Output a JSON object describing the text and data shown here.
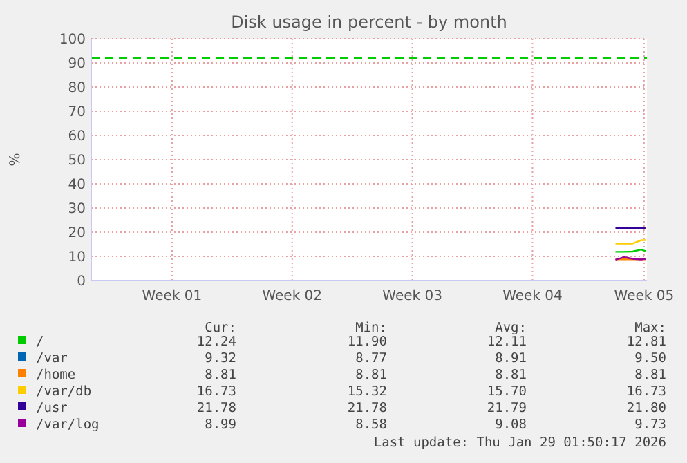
{
  "chart_data": {
    "type": "line",
    "title": "Disk usage in percent - by month",
    "ylabel": "%",
    "x": [
      "2026-01-27T08:00",
      "2026-01-27T20:00",
      "2026-01-28T08:00",
      "2026-01-28T20:00",
      "2026-01-29T02:00"
    ],
    "xlim": [
      "2025-12-27T19:00",
      "2026-01-29T04:00"
    ],
    "xticks": [
      {
        "value": "2026-01-01T12:00",
        "label": "Week 01"
      },
      {
        "value": "2026-01-08T12:00",
        "label": "Week 02"
      },
      {
        "value": "2026-01-15T12:00",
        "label": "Week 03"
      },
      {
        "value": "2026-01-22T12:00",
        "label": "Week 04"
      },
      {
        "value": "2026-01-29T00:00",
        "label": "Week 05"
      }
    ],
    "ylim": [
      0,
      100
    ],
    "yticks": [
      0,
      10,
      20,
      30,
      40,
      50,
      60,
      70,
      80,
      90,
      100
    ],
    "grid": true,
    "legend": "bottom",
    "series": [
      {
        "name": "/",
        "color": "#00cc00",
        "values": [
          11.9,
          11.9,
          12.0,
          12.8,
          12.2
        ]
      },
      {
        "name": "/var",
        "color": "#0066b3",
        "values": [
          null,
          null,
          null,
          null,
          null
        ]
      },
      {
        "name": "/home",
        "color": "#ff8000",
        "values": [
          8.8,
          8.8,
          8.8,
          8.8,
          8.8
        ]
      },
      {
        "name": "/var/db",
        "color": "#ffcc00",
        "values": [
          15.3,
          15.3,
          15.3,
          16.7,
          16.7
        ]
      },
      {
        "name": "/usr",
        "color": "#330099",
        "values": [
          21.8,
          21.8,
          21.8,
          21.8,
          21.8
        ]
      },
      {
        "name": "/var/log",
        "color": "#990099",
        "values": [
          8.6,
          9.7,
          9.0,
          8.7,
          9.0
        ]
      }
    ],
    "ref_lines": [
      {
        "axis": "y",
        "value": 92,
        "color": "#00cc00",
        "line_style": "dashed"
      }
    ],
    "annotations": [
      "Cur:",
      "Min:",
      "Avg:",
      "Max:",
      "12.24",
      "11.90",
      "12.11",
      "12.81",
      "9.32",
      "8.77",
      "8.91",
      "9.50",
      "8.81",
      "8.81",
      "8.81",
      "8.81",
      "16.73",
      "15.32",
      "15.70",
      "16.73",
      "21.78",
      "21.78",
      "21.79",
      "21.80",
      "8.99",
      "8.58",
      "9.08",
      "9.73",
      "Last update: Thu Jan 29 01:50:17 2026"
    ]
  }
}
